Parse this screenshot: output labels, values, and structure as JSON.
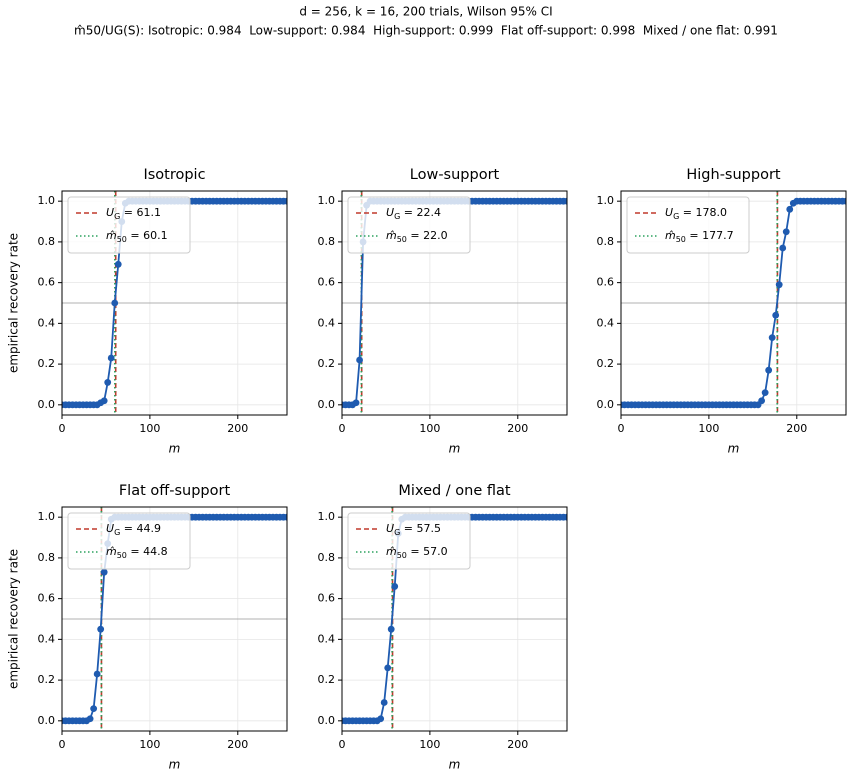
{
  "suptitle": [
    "d = 256, k = 16, 200 trials, Wilson 95% CI",
    "m̂50/UG(S): Isotropic: 0.984  Low-support: 0.984  High-support: 0.999  Flat off-support: 0.998  Mixed / one flat: 0.991"
  ],
  "chart_data": [
    {
      "type": "line",
      "title": "Isotropic",
      "xlabel": "m",
      "ylabel": "empirical recovery rate",
      "color": "#1f5bb0",
      "grid": true,
      "legend": "upper left",
      "x": [
        0,
        4,
        8,
        12,
        16,
        20,
        24,
        28,
        32,
        36,
        40,
        44,
        48,
        52,
        56,
        60,
        64,
        68,
        72,
        76,
        80,
        84,
        88,
        92,
        96,
        100,
        104,
        108,
        112,
        116,
        120,
        124,
        128,
        132,
        136,
        140,
        144,
        148,
        152,
        156,
        160,
        164,
        168,
        172,
        176,
        180,
        184,
        188,
        192,
        196,
        200,
        204,
        208,
        212,
        216,
        220,
        224,
        228,
        232,
        236,
        240,
        244,
        248,
        252,
        256
      ],
      "values": [
        0,
        0,
        0,
        0,
        0,
        0,
        0,
        0,
        0,
        0,
        0,
        0.01,
        0.02,
        0.11,
        0.23,
        0.5,
        0.69,
        0.9,
        0.99,
        1,
        1,
        1,
        1,
        1,
        1,
        1,
        1,
        1,
        1,
        1,
        1,
        1,
        1,
        1,
        1,
        1,
        1,
        1,
        1,
        1,
        1,
        1,
        1,
        1,
        1,
        1,
        1,
        1,
        1,
        1,
        1,
        1,
        1,
        1,
        1,
        1,
        1,
        1,
        1,
        1,
        1,
        1,
        1,
        1,
        1
      ],
      "hline": 0.5,
      "vlines": [
        {
          "label": "U_G = 61.1",
          "value": 61.1,
          "color": "#c0392b",
          "style": "dashed"
        },
        {
          "label": "m̂_50 = 60.1",
          "value": 60.1,
          "color": "#2ca25f",
          "style": "dotted"
        }
      ],
      "xlim": [
        0,
        256
      ],
      "xticks": [
        0,
        100,
        200
      ],
      "ylim": [
        -0.05,
        1.05
      ],
      "yticks": [
        {
          "value": 0,
          "label": "0.0"
        },
        {
          "value": 0.2,
          "label": "0.2"
        },
        {
          "value": 0.4,
          "label": "0.4"
        },
        {
          "value": 0.6,
          "label": "0.6"
        },
        {
          "value": 0.8,
          "label": "0.8"
        },
        {
          "value": 1,
          "label": "1.0"
        }
      ]
    },
    {
      "type": "line",
      "title": "Low-support",
      "xlabel": "m",
      "color": "#1f5bb0",
      "grid": true,
      "legend": "upper left",
      "x": [
        0,
        4,
        8,
        12,
        16,
        20,
        24,
        28,
        32,
        36,
        40,
        44,
        48,
        52,
        56,
        60,
        64,
        68,
        72,
        76,
        80,
        84,
        88,
        92,
        96,
        100,
        104,
        108,
        112,
        116,
        120,
        124,
        128,
        132,
        136,
        140,
        144,
        148,
        152,
        156,
        160,
        164,
        168,
        172,
        176,
        180,
        184,
        188,
        192,
        196,
        200,
        204,
        208,
        212,
        216,
        220,
        224,
        228,
        232,
        236,
        240,
        244,
        248,
        252,
        256
      ],
      "values": [
        0,
        0,
        0,
        0,
        0.01,
        0.22,
        0.8,
        0.98,
        1,
        1,
        1,
        1,
        1,
        1,
        1,
        1,
        1,
        1,
        1,
        1,
        1,
        1,
        1,
        1,
        1,
        1,
        1,
        1,
        1,
        1,
        1,
        1,
        1,
        1,
        1,
        1,
        1,
        1,
        1,
        1,
        1,
        1,
        1,
        1,
        1,
        1,
        1,
        1,
        1,
        1,
        1,
        1,
        1,
        1,
        1,
        1,
        1,
        1,
        1,
        1,
        1,
        1,
        1,
        1,
        1
      ],
      "hline": 0.5,
      "vlines": [
        {
          "label": "U_G = 22.4",
          "value": 22.4,
          "color": "#c0392b",
          "style": "dashed"
        },
        {
          "label": "m̂_50 = 22.0",
          "value": 22.0,
          "color": "#2ca25f",
          "style": "dotted"
        }
      ],
      "xlim": [
        0,
        256
      ],
      "xticks": [
        0,
        100,
        200
      ],
      "ylim": [
        -0.05,
        1.05
      ],
      "yticks": [
        {
          "value": 0,
          "label": "0.0"
        },
        {
          "value": 0.2,
          "label": "0.2"
        },
        {
          "value": 0.4,
          "label": "0.4"
        },
        {
          "value": 0.6,
          "label": "0.6"
        },
        {
          "value": 0.8,
          "label": "0.8"
        },
        {
          "value": 1,
          "label": "1.0"
        }
      ]
    },
    {
      "type": "line",
      "title": "High-support",
      "xlabel": "m",
      "color": "#1f5bb0",
      "grid": true,
      "legend": "upper left",
      "x": [
        0,
        4,
        8,
        12,
        16,
        20,
        24,
        28,
        32,
        36,
        40,
        44,
        48,
        52,
        56,
        60,
        64,
        68,
        72,
        76,
        80,
        84,
        88,
        92,
        96,
        100,
        104,
        108,
        112,
        116,
        120,
        124,
        128,
        132,
        136,
        140,
        144,
        148,
        152,
        156,
        160,
        164,
        168,
        172,
        176,
        180,
        184,
        188,
        192,
        196,
        200,
        204,
        208,
        212,
        216,
        220,
        224,
        228,
        232,
        236,
        240,
        244,
        248,
        252,
        256
      ],
      "values": [
        0,
        0,
        0,
        0,
        0,
        0,
        0,
        0,
        0,
        0,
        0,
        0,
        0,
        0,
        0,
        0,
        0,
        0,
        0,
        0,
        0,
        0,
        0,
        0,
        0,
        0,
        0,
        0,
        0,
        0,
        0,
        0,
        0,
        0,
        0,
        0,
        0,
        0,
        0,
        0,
        0.02,
        0.06,
        0.17,
        0.33,
        0.44,
        0.59,
        0.77,
        0.85,
        0.96,
        0.99,
        1,
        1,
        1,
        1,
        1,
        1,
        1,
        1,
        1,
        1,
        1,
        1,
        1,
        1,
        1
      ],
      "hline": 0.5,
      "vlines": [
        {
          "label": "U_G = 178.0",
          "value": 178.0,
          "color": "#c0392b",
          "style": "dashed"
        },
        {
          "label": "m̂_50 = 177.7",
          "value": 177.7,
          "color": "#2ca25f",
          "style": "dotted"
        }
      ],
      "xlim": [
        0,
        256
      ],
      "xticks": [
        0,
        100,
        200
      ],
      "ylim": [
        -0.05,
        1.05
      ],
      "yticks": [
        {
          "value": 0,
          "label": "0.0"
        },
        {
          "value": 0.2,
          "label": "0.2"
        },
        {
          "value": 0.4,
          "label": "0.4"
        },
        {
          "value": 0.6,
          "label": "0.6"
        },
        {
          "value": 0.8,
          "label": "0.8"
        },
        {
          "value": 1,
          "label": "1.0"
        }
      ]
    },
    {
      "type": "line",
      "title": "Flat off-support",
      "xlabel": "m",
      "ylabel": "empirical recovery rate",
      "color": "#1f5bb0",
      "grid": true,
      "legend": "upper left",
      "x": [
        0,
        4,
        8,
        12,
        16,
        20,
        24,
        28,
        32,
        36,
        40,
        44,
        48,
        52,
        56,
        60,
        64,
        68,
        72,
        76,
        80,
        84,
        88,
        92,
        96,
        100,
        104,
        108,
        112,
        116,
        120,
        124,
        128,
        132,
        136,
        140,
        144,
        148,
        152,
        156,
        160,
        164,
        168,
        172,
        176,
        180,
        184,
        188,
        192,
        196,
        200,
        204,
        208,
        212,
        216,
        220,
        224,
        228,
        232,
        236,
        240,
        244,
        248,
        252,
        256
      ],
      "values": [
        0,
        0,
        0,
        0,
        0,
        0,
        0,
        0,
        0.01,
        0.06,
        0.23,
        0.45,
        0.73,
        0.87,
        0.99,
        1,
        1,
        1,
        1,
        1,
        1,
        1,
        1,
        1,
        1,
        1,
        1,
        1,
        1,
        1,
        1,
        1,
        1,
        1,
        1,
        1,
        1,
        1,
        1,
        1,
        1,
        1,
        1,
        1,
        1,
        1,
        1,
        1,
        1,
        1,
        1,
        1,
        1,
        1,
        1,
        1,
        1,
        1,
        1,
        1,
        1,
        1,
        1,
        1,
        1
      ],
      "hline": 0.5,
      "vlines": [
        {
          "label": "U_G = 44.9",
          "value": 44.9,
          "color": "#c0392b",
          "style": "dashed"
        },
        {
          "label": "m̂_50 = 44.8",
          "value": 44.8,
          "color": "#2ca25f",
          "style": "dotted"
        }
      ],
      "xlim": [
        0,
        256
      ],
      "xticks": [
        0,
        100,
        200
      ],
      "ylim": [
        -0.05,
        1.05
      ],
      "yticks": [
        {
          "value": 0,
          "label": "0.0"
        },
        {
          "value": 0.2,
          "label": "0.2"
        },
        {
          "value": 0.4,
          "label": "0.4"
        },
        {
          "value": 0.6,
          "label": "0.6"
        },
        {
          "value": 0.8,
          "label": "0.8"
        },
        {
          "value": 1,
          "label": "1.0"
        }
      ]
    },
    {
      "type": "line",
      "title": "Mixed / one flat",
      "xlabel": "m",
      "color": "#1f5bb0",
      "grid": true,
      "legend": "upper left",
      "x": [
        0,
        4,
        8,
        12,
        16,
        20,
        24,
        28,
        32,
        36,
        40,
        44,
        48,
        52,
        56,
        60,
        64,
        68,
        72,
        76,
        80,
        84,
        88,
        92,
        96,
        100,
        104,
        108,
        112,
        116,
        120,
        124,
        128,
        132,
        136,
        140,
        144,
        148,
        152,
        156,
        160,
        164,
        168,
        172,
        176,
        180,
        184,
        188,
        192,
        196,
        200,
        204,
        208,
        212,
        216,
        220,
        224,
        228,
        232,
        236,
        240,
        244,
        248,
        252,
        256
      ],
      "values": [
        0,
        0,
        0,
        0,
        0,
        0,
        0,
        0,
        0,
        0,
        0,
        0.01,
        0.09,
        0.26,
        0.45,
        0.66,
        0.92,
        0.99,
        1,
        1,
        1,
        1,
        1,
        1,
        1,
        1,
        1,
        1,
        1,
        1,
        1,
        1,
        1,
        1,
        1,
        1,
        1,
        1,
        1,
        1,
        1,
        1,
        1,
        1,
        1,
        1,
        1,
        1,
        1,
        1,
        1,
        1,
        1,
        1,
        1,
        1,
        1,
        1,
        1,
        1,
        1,
        1,
        1,
        1,
        1
      ],
      "hline": 0.5,
      "vlines": [
        {
          "label": "U_G = 57.5",
          "value": 57.5,
          "color": "#c0392b",
          "style": "dashed"
        },
        {
          "label": "m̂_50 = 57.0",
          "value": 57.0,
          "color": "#2ca25f",
          "style": "dotted"
        }
      ],
      "xlim": [
        0,
        256
      ],
      "xticks": [
        0,
        100,
        200
      ],
      "ylim": [
        -0.05,
        1.05
      ],
      "yticks": [
        {
          "value": 0,
          "label": "0.0"
        },
        {
          "value": 0.2,
          "label": "0.2"
        },
        {
          "value": 0.4,
          "label": "0.4"
        },
        {
          "value": 0.6,
          "label": "0.6"
        },
        {
          "value": 0.8,
          "label": "0.8"
        },
        {
          "value": 1,
          "label": "1.0"
        }
      ]
    }
  ]
}
